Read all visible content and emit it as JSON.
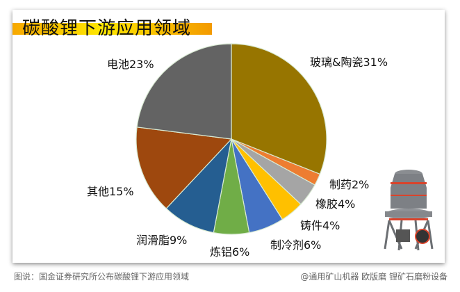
{
  "chart_data": {
    "type": "pie",
    "title": "碳酸锂下游应用领域",
    "categories": [
      "玻璃&陶瓷",
      "制药",
      "橡胶",
      "铸件",
      "制冷剂",
      "炼铝",
      "润滑脂",
      "其他",
      "电池"
    ],
    "values": [
      31,
      2,
      4,
      4,
      6,
      6,
      9,
      15,
      23
    ],
    "unit": "%",
    "colors": [
      "#977500",
      "#ed7d31",
      "#a5a5a5",
      "#ffc000",
      "#4472c4",
      "#70ad47",
      "#255e91",
      "#9e480e",
      "#636363"
    ],
    "start_angle": "12 o'clock, clockwise",
    "legend": "none (data labels outside slices)"
  },
  "header": {
    "title": "碳酸锂下游应用领域"
  },
  "labels": [
    {
      "text": "玻璃&陶瓷31%"
    },
    {
      "text": "制药2%"
    },
    {
      "text": "橡胶4%"
    },
    {
      "text": "铸件4%"
    },
    {
      "text": "制冷剂6%"
    },
    {
      "text": "炼铝6%"
    },
    {
      "text": "润滑脂9%"
    },
    {
      "text": "其他15%"
    },
    {
      "text": "电池23%"
    }
  ],
  "footer": {
    "caption": "图说：国金证券研究所公布碳酸锂下游应用领域",
    "credit": "@通用矿山机器 欧版磨  锂矿石磨粉设备"
  }
}
